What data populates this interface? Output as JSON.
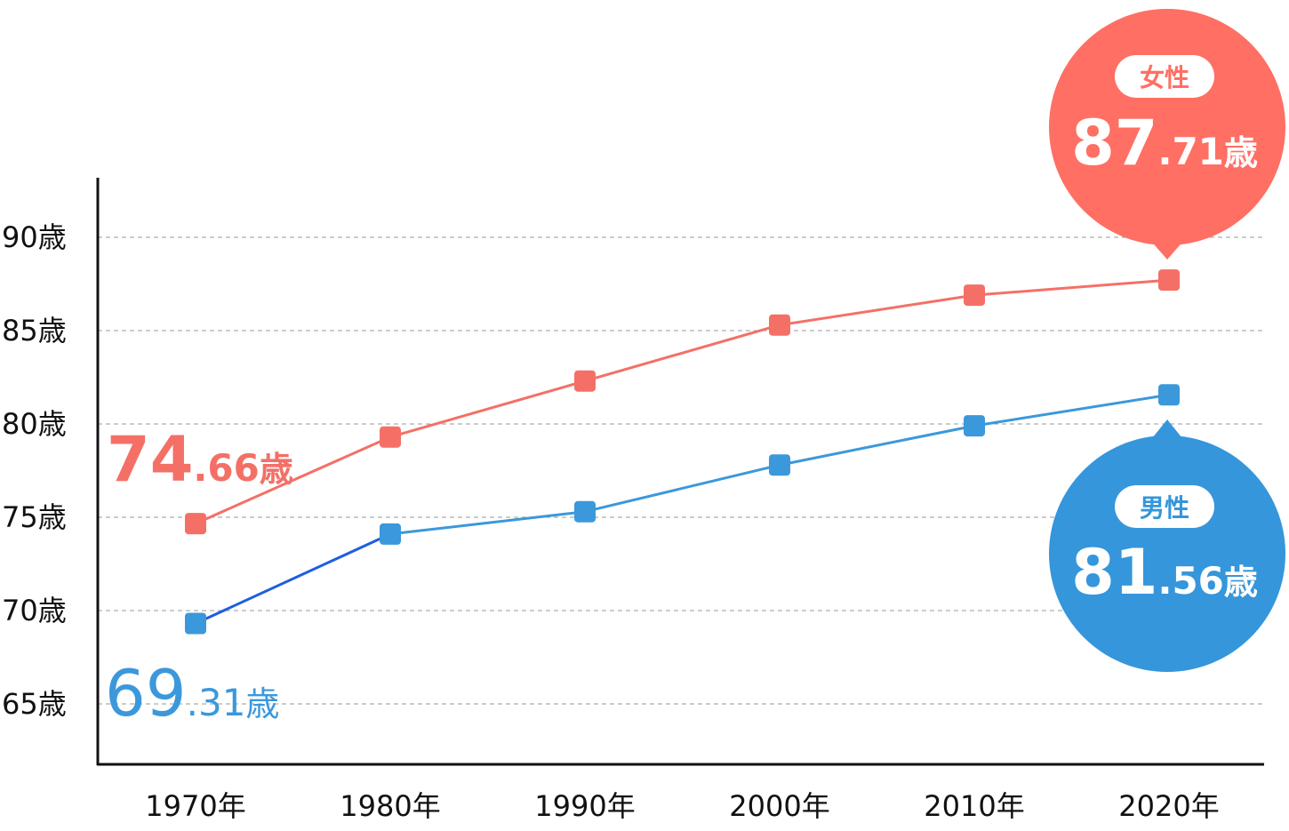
{
  "colors": {
    "female": "#F47067",
    "male": "#3B98DB",
    "male_first_segment": "#1E5FE0",
    "axis": "#111111",
    "grid": "#9a9a9a",
    "bubble_female": "#FF6F63",
    "bubble_male": "#3596DB"
  },
  "chart_data": {
    "type": "line",
    "categories": [
      "1970年",
      "1980年",
      "1990年",
      "2000年",
      "2010年",
      "2020年"
    ],
    "y_tick_labels": [
      "65歳",
      "70歳",
      "75歳",
      "80歳",
      "85歳",
      "90歳"
    ],
    "y_ticks": [
      65,
      70,
      75,
      80,
      85,
      90
    ],
    "ylim": [
      61.8,
      93.2
    ],
    "grid": "horizontal dashed",
    "series": [
      {
        "name": "女性",
        "values": [
          74.66,
          79.3,
          82.3,
          85.3,
          86.9,
          87.71
        ]
      },
      {
        "name": "男性",
        "values": [
          69.31,
          74.1,
          75.3,
          77.8,
          79.9,
          81.56
        ]
      }
    ],
    "annotations": {
      "female_start": {
        "int": "74",
        "dec": ".66",
        "unit": "歳"
      },
      "male_start": {
        "int": "69",
        "dec": ".31",
        "unit": "歳"
      },
      "female_end": {
        "label": "女性",
        "int": "87",
        "dec": ".71",
        "unit": "歳"
      },
      "male_end": {
        "label": "男性",
        "int": "81",
        "dec": ".56",
        "unit": "歳"
      }
    }
  }
}
